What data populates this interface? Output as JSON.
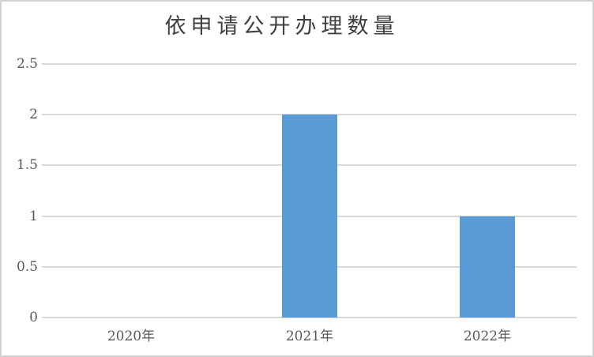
{
  "chart_data": {
    "type": "bar",
    "title": "依申请公开办理数量",
    "categories": [
      "2020年",
      "2021年",
      "2022年"
    ],
    "values": [
      0,
      2,
      1
    ],
    "xlabel": "",
    "ylabel": "",
    "ylim": [
      0,
      2.5
    ],
    "yticks": [
      0,
      0.5,
      1,
      1.5,
      2,
      2.5
    ],
    "ytick_labels": [
      "0",
      "0.5",
      "1",
      "1.5",
      "2",
      "2.5"
    ],
    "grid": true,
    "legend": false,
    "colors": {
      "bar": "#5B9BD5",
      "gridline": "#D9D9D9",
      "axis_label": "#595959",
      "title": "#404040",
      "frame_border": "#D3D3D3",
      "background": "#FFFFFF"
    }
  }
}
